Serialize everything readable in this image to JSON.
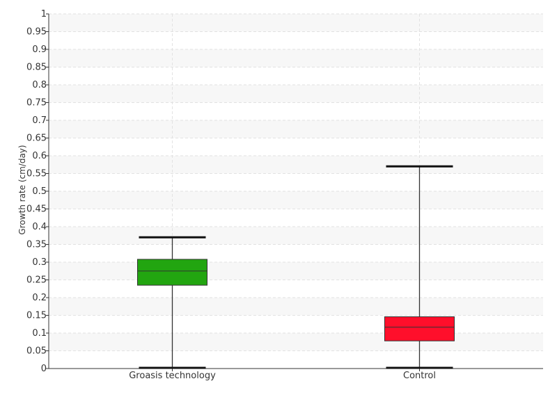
{
  "chart_data": {
    "type": "box",
    "title": "",
    "xlabel": "",
    "ylabel": "Growth rate (cm/day)",
    "ylim": [
      0,
      1
    ],
    "ytick_step": 0.05,
    "yticks": [
      "0",
      "0.05",
      "0.1",
      "0.15",
      "0.2",
      "0.25",
      "0.3",
      "0.35",
      "0.4",
      "0.45",
      "0.5",
      "0.55",
      "0.6",
      "0.65",
      "0.7",
      "0.75",
      "0.8",
      "0.85",
      "0.9",
      "0.95",
      "1"
    ],
    "grid": true,
    "categories": [
      "Groasis technology",
      "Control"
    ],
    "boxes": [
      {
        "category": "Groasis technology",
        "min": 0.0,
        "q1": 0.235,
        "median": 0.275,
        "q3": 0.308,
        "max": 0.37,
        "color": "#22a510"
      },
      {
        "category": "Control",
        "min": 0.0,
        "q1": 0.078,
        "median": 0.117,
        "q3": 0.146,
        "max": 0.57,
        "color": "#ff0f2b"
      }
    ]
  }
}
